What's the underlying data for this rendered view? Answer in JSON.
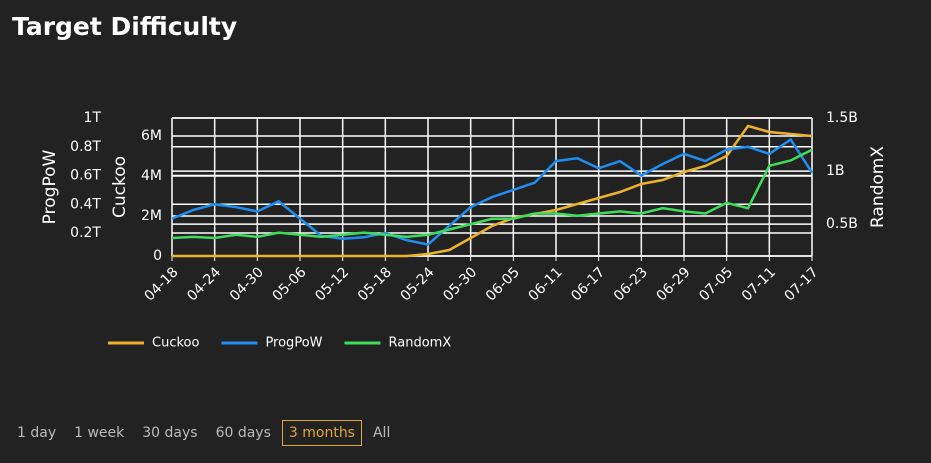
{
  "title": "Target Difficulty",
  "chart_data": {
    "type": "line",
    "x": [
      "04-18",
      "04-21",
      "04-24",
      "04-27",
      "04-30",
      "05-03",
      "05-06",
      "05-09",
      "05-12",
      "05-15",
      "05-18",
      "05-21",
      "05-24",
      "05-27",
      "05-30",
      "06-02",
      "06-05",
      "06-08",
      "06-11",
      "06-14",
      "06-17",
      "06-20",
      "06-23",
      "06-26",
      "06-29",
      "07-02",
      "07-05",
      "07-08",
      "07-11",
      "07-14",
      "07-17"
    ],
    "xticks": [
      "04-18",
      "04-24",
      "04-30",
      "05-06",
      "05-12",
      "05-18",
      "05-24",
      "05-30",
      "06-05",
      "06-11",
      "06-17",
      "06-23",
      "06-29",
      "07-05",
      "07-11",
      "07-17"
    ],
    "grid": true,
    "ylabel": "Cuckoo",
    "ylim": [
      0,
      6900000
    ],
    "yticks": [
      0,
      {
        "value": 2000000,
        "label": "2M"
      },
      {
        "value": 4000000,
        "label": "4M"
      },
      {
        "value": 6000000,
        "label": "6M"
      }
    ],
    "y2label": "RandomX",
    "y2lim": [
      200000000,
      1500000000
    ],
    "y2ticks": [
      {
        "value": 500000000,
        "label": "0.5B"
      },
      {
        "value": 1000000000,
        "label": "1B"
      },
      {
        "value": 1500000000,
        "label": "1.5B"
      }
    ],
    "y3label": "ProgPoW",
    "y3lim": [
      40000000000,
      1000000000000
    ],
    "y3ticks": [
      {
        "value": 200000000000,
        "label": "0.2T"
      },
      {
        "value": 400000000000,
        "label": "0.4T"
      },
      {
        "value": 600000000000,
        "label": "0.6T"
      },
      {
        "value": 800000000000,
        "label": "0.8T"
      },
      {
        "value": 1000000000000,
        "label": "1T"
      }
    ],
    "series": [
      {
        "name": "Cuckoo",
        "color": "#ecb22e",
        "axis": "y",
        "values": [
          0,
          0,
          0,
          0,
          0,
          0,
          0,
          0,
          0,
          0,
          0,
          0,
          100000,
          300000,
          900000,
          1500000,
          1900000,
          2100000,
          2300000,
          2600000,
          2900000,
          3200000,
          3600000,
          3800000,
          4200000,
          4500000,
          5000000,
          6500000,
          6200000,
          6100000,
          6000000
        ]
      },
      {
        "name": "ProgPoW",
        "color": "#1f8ef1",
        "axis": "y3",
        "values": [
          300000000000,
          360000000000,
          400000000000,
          380000000000,
          350000000000,
          420000000000,
          300000000000,
          180000000000,
          160000000000,
          170000000000,
          200000000000,
          150000000000,
          120000000000,
          250000000000,
          380000000000,
          450000000000,
          500000000000,
          550000000000,
          700000000000,
          720000000000,
          650000000000,
          700000000000,
          600000000000,
          680000000000,
          750000000000,
          700000000000,
          780000000000,
          800000000000,
          750000000000,
          850000000000,
          620000000000
        ]
      },
      {
        "name": "RandomX",
        "color": "#3ddc5a",
        "axis": "y2",
        "values": [
          370000000,
          380000000,
          370000000,
          400000000,
          380000000,
          420000000,
          400000000,
          380000000,
          400000000,
          420000000,
          400000000,
          380000000,
          400000000,
          450000000,
          500000000,
          550000000,
          550000000,
          600000000,
          600000000,
          580000000,
          600000000,
          620000000,
          600000000,
          650000000,
          620000000,
          600000000,
          700000000,
          650000000,
          1050000000,
          1100000000,
          1200000000
        ]
      }
    ]
  },
  "range_buttons": [
    "1 day",
    "1 week",
    "30 days",
    "60 days",
    "3 months",
    "All"
  ],
  "selected_range": 4
}
